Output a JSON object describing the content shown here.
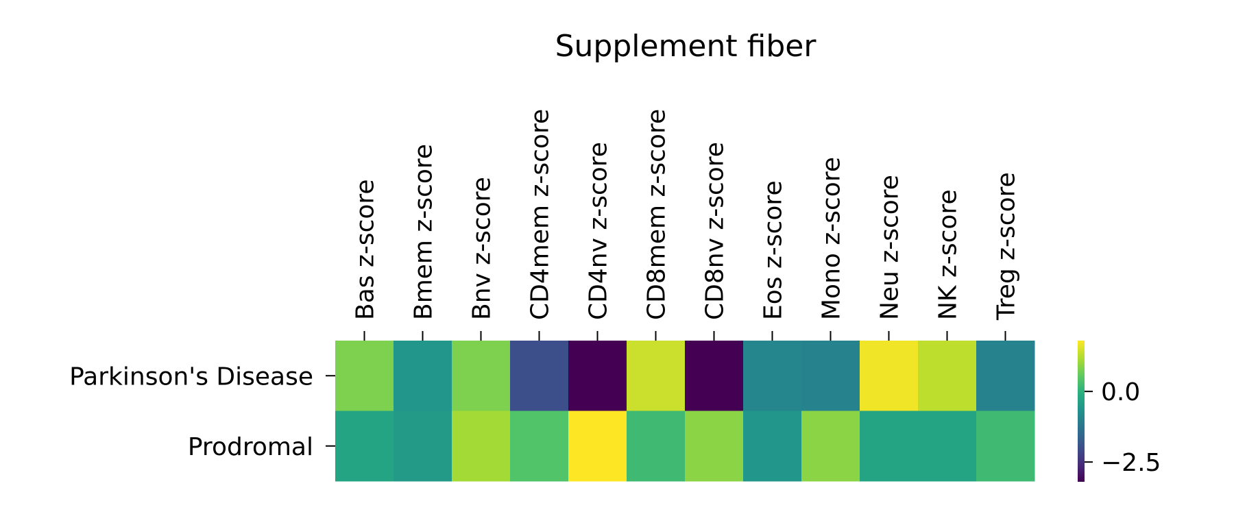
{
  "chart_data": {
    "type": "heatmap",
    "title": "Supplement fiber",
    "columns": [
      "Bas z-score",
      "Bmem z-score",
      "Bnv z-score",
      "CD4mem z-score",
      "CD4nv z-score",
      "CD8mem z-score",
      "CD8nv z-score",
      "Eos z-score",
      "Mono z-score",
      "Neu z-score",
      "NK z-score",
      "Treg z-score"
    ],
    "rows": [
      "Parkinson's Disease",
      "Prodromal"
    ],
    "values": [
      [
        0.8,
        -0.6,
        0.8,
        -2.0,
        -3.2,
        1.4,
        -3.2,
        -0.9,
        -1.0,
        1.7,
        1.3,
        -1.0
      ],
      [
        -0.3,
        -0.5,
        1.1,
        0.4,
        1.8,
        0.2,
        0.9,
        -0.6,
        0.9,
        -0.3,
        -0.3,
        0.2
      ]
    ],
    "colormap": "viridis",
    "vmin": -3.2,
    "vmax": 1.8,
    "colorbar_ticks": [
      0.0,
      -2.5
    ],
    "colorbar_tick_labels": [
      "0.0",
      "−2.5"
    ]
  }
}
